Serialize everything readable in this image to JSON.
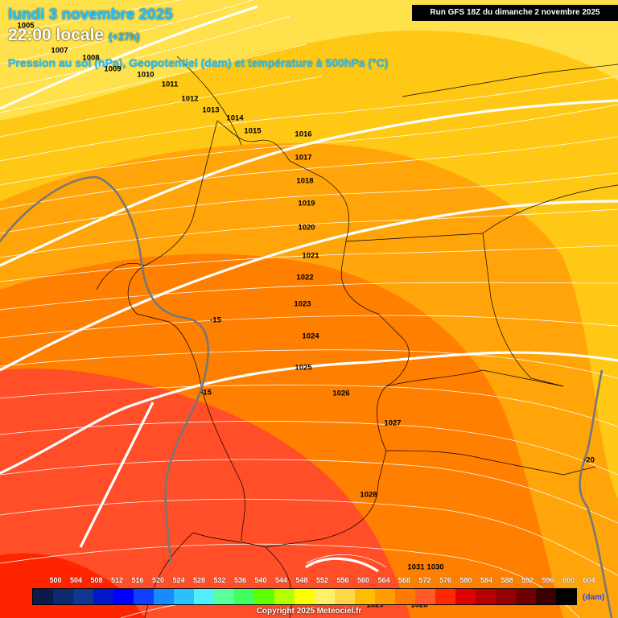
{
  "header": {
    "date_line": "lundi 3 novembre 2025",
    "time_line": "22:00 locale",
    "offset": "(+27h)",
    "subtitle": "Pression au sol (hPa), Geopotentiel (dam) et température à 500hPa (°C)",
    "run_info": "Run GFS 18Z du dimanche 2 novembre 2025"
  },
  "isobars": [
    "1005",
    "1007",
    "1008",
    "1009",
    "1010",
    "1011",
    "1012",
    "1013",
    "1014",
    "1015",
    "1016",
    "1017",
    "1018",
    "1019",
    "1020",
    "1021",
    "1022",
    "1023",
    "1024",
    "1025",
    "1026",
    "1027",
    "1028",
    "1028",
    "1029",
    "1030",
    "1031"
  ],
  "temperatures": [
    "-15",
    "-15",
    "-20"
  ],
  "legend": {
    "values": [
      "500",
      "504",
      "508",
      "512",
      "516",
      "520",
      "524",
      "528",
      "532",
      "536",
      "540",
      "544",
      "548",
      "552",
      "556",
      "560",
      "564",
      "568",
      "572",
      "576",
      "580",
      "584",
      "588",
      "592",
      "596",
      "600",
      "604"
    ],
    "colors": [
      "#0a1a4a",
      "#0a2a70",
      "#103690",
      "#0016c8",
      "#0000ff",
      "#1040ff",
      "#1a8aff",
      "#28c0ff",
      "#4ef0ff",
      "#5cff9c",
      "#40ff60",
      "#60ff00",
      "#b4ff00",
      "#ffff00",
      "#fff06a",
      "#ffd84a",
      "#ffbc00",
      "#ff9e00",
      "#ff7a00",
      "#ff5a28",
      "#ff2800",
      "#e00000",
      "#b40000",
      "#960000",
      "#700000",
      "#3a0000",
      "#000000"
    ],
    "unit": "(dam)"
  },
  "copyright": "Copyright 2025 Meteociel.fr"
}
